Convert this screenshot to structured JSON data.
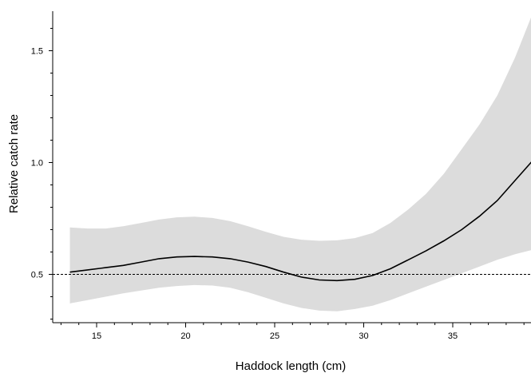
{
  "chart_data": {
    "type": "line",
    "title": "",
    "xlabel": "Haddock length (cm)",
    "ylabel": "Relative catch rate",
    "xlim": [
      12.5,
      39.5
    ],
    "ylim": [
      0.28,
      1.7
    ],
    "x_ticks": [
      15,
      20,
      25,
      30,
      35
    ],
    "y_ticks": [
      0.5,
      1.0,
      1.5
    ],
    "x_tick_labels": [
      "15",
      "20",
      "25",
      "30",
      "35"
    ],
    "y_tick_labels": [
      "0.5",
      "1.0",
      "1.5"
    ],
    "grid": false,
    "legend": "none",
    "reference_line": {
      "y": 0.5,
      "style": "dashed"
    },
    "band_color": "#dcdcdc",
    "line_color": "#000000",
    "series": [
      {
        "x": [
          13.5,
          14.5,
          15.5,
          16.5,
          17.5,
          18.5,
          19.5,
          20.5,
          21.5,
          22.5,
          23.5,
          24.5,
          25.5,
          26.5,
          27.5,
          28.5,
          29.5,
          30.5,
          31.5,
          32.5,
          33.5,
          34.5,
          35.5,
          36.5,
          37.5,
          38.5,
          39.5
        ],
        "y": [
          0.51,
          0.52,
          0.53,
          0.54,
          0.555,
          0.57,
          0.578,
          0.58,
          0.578,
          0.57,
          0.555,
          0.535,
          0.51,
          0.488,
          0.475,
          0.472,
          0.478,
          0.495,
          0.525,
          0.565,
          0.605,
          0.65,
          0.7,
          0.76,
          0.83,
          0.92,
          1.01
        ],
        "lower": [
          0.37,
          0.385,
          0.4,
          0.415,
          0.428,
          0.44,
          0.448,
          0.452,
          0.45,
          0.44,
          0.42,
          0.395,
          0.37,
          0.35,
          0.338,
          0.335,
          0.345,
          0.36,
          0.385,
          0.415,
          0.445,
          0.475,
          0.505,
          0.535,
          0.565,
          0.59,
          0.61
        ],
        "upper": [
          0.71,
          0.705,
          0.705,
          0.715,
          0.73,
          0.745,
          0.755,
          0.758,
          0.752,
          0.738,
          0.715,
          0.69,
          0.668,
          0.655,
          0.65,
          0.652,
          0.662,
          0.685,
          0.73,
          0.79,
          0.86,
          0.95,
          1.06,
          1.17,
          1.3,
          1.47,
          1.67
        ]
      }
    ]
  }
}
